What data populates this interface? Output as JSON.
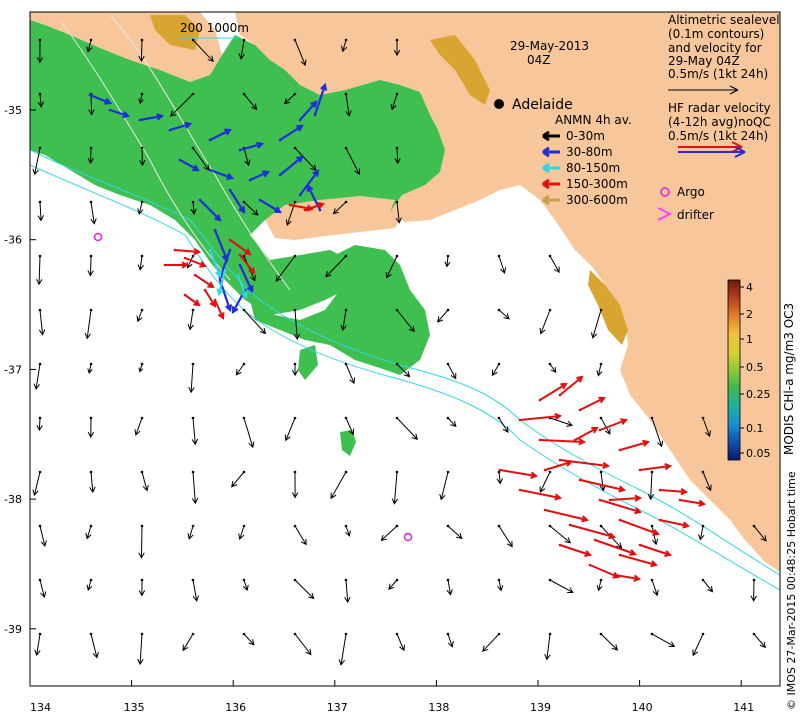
{
  "map": {
    "title_date": "29-May-2013",
    "title_time": "04Z",
    "scale_bar_label": "200  1000m",
    "city": "Adelaide",
    "x_ticks": [
      "134",
      "135",
      "136",
      "137",
      "138",
      "139",
      "140",
      "141"
    ],
    "y_ticks": [
      "-35",
      "-36",
      "-37",
      "-38",
      "-39"
    ],
    "credit": "© IMOS 27-Mar-2015 00:48:25 Hobart time",
    "colors": {
      "land": "#f7c79b",
      "ocean": "#ffffff",
      "chl_green": "#3fbf4f",
      "isobath": "#33d6e8",
      "arrow_0_30": "#000000",
      "arrow_30_80": "#1f2fd6",
      "arrow_80_150": "#33d6e8",
      "arrow_150_300": "#e01010",
      "arrow_300_600": "#c8a050",
      "argo": "#e020e0",
      "drifter": "#ff40ff"
    }
  },
  "legend_altimetry": {
    "line1": "Altimetric sealevel",
    "line2": "(0.1m contours)",
    "line3": "and velocity for",
    "line4": "29-May 04Z",
    "line5": "0.5m/s (1kt 24h)"
  },
  "legend_radar": {
    "line1": "HF radar velocity",
    "line2": "(4-12h avg)noQC",
    "line3": "0.5m/s (1kt 24h)"
  },
  "legend_anmn": {
    "title": "ANMN 4h av.",
    "items": [
      "0-30m",
      "30-80m",
      "80-150m",
      "150-300m",
      "300-600m"
    ]
  },
  "legend_markers": {
    "argo": "Argo",
    "drifter": "drifter"
  },
  "colorbar": {
    "label": "MODIS CHl-a mg/m3 OC3",
    "ticks": [
      "4",
      "2",
      "1",
      "0.5",
      "0.25",
      "0.1",
      "0.05"
    ],
    "stops": [
      "#6b1a0a",
      "#b3401c",
      "#e0802c",
      "#f0c040",
      "#d8d030",
      "#90c838",
      "#40b850",
      "#20b0a0",
      "#1890d0",
      "#1050b0",
      "#0a1a70"
    ]
  }
}
